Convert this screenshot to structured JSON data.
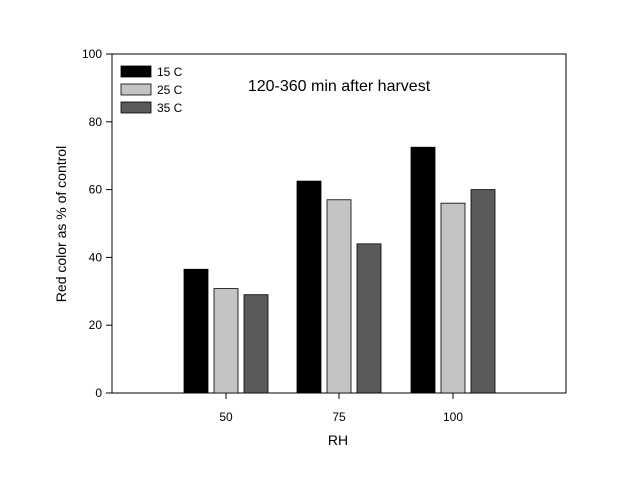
{
  "chart_data": {
    "type": "bar",
    "title": "",
    "annotation": "120-360 min after harvest",
    "xlabel": "RH",
    "ylabel": "Red color as % of control",
    "categories": [
      "50",
      "75",
      "100"
    ],
    "yticks": [
      "0",
      "20",
      "40",
      "60",
      "80",
      "100"
    ],
    "ylim": [
      0,
      100
    ],
    "grid": false,
    "legend_position": "top-left",
    "series": [
      {
        "name": "15 C",
        "color": "#000000",
        "values": [
          36.5,
          62.5,
          72.5
        ]
      },
      {
        "name": "25 C",
        "color": "#c4c4c4",
        "values": [
          30.8,
          57,
          56
        ]
      },
      {
        "name": "35 C",
        "color": "#5a5a5a",
        "values": [
          29,
          44,
          60
        ]
      }
    ]
  }
}
